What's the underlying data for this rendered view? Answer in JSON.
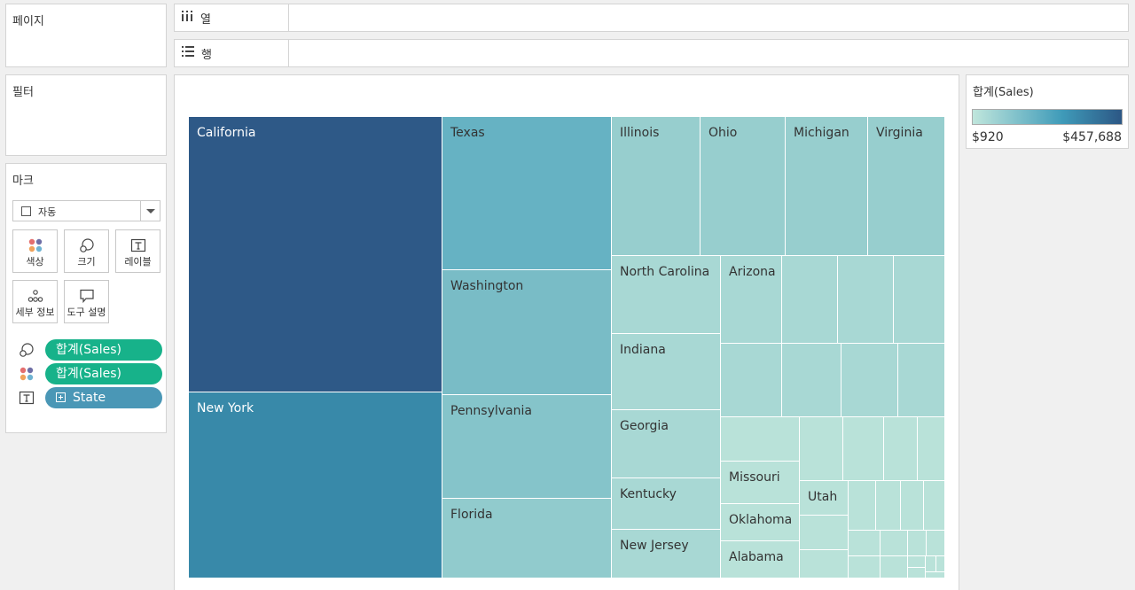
{
  "panels": {
    "pages_title": "페이지",
    "filters_title": "필터",
    "marks_title": "마크"
  },
  "shelves": {
    "columns_label": "열",
    "rows_label": "행"
  },
  "marks": {
    "mark_type": "자동",
    "buttons": {
      "color": "색상",
      "size": "크기",
      "label": "레이블",
      "detail": "세부 정보",
      "tooltip": "도구 설명"
    },
    "pills": [
      {
        "icon": "size-icon",
        "text": "합계(Sales)",
        "color": "#17b28a"
      },
      {
        "icon": "color-icon",
        "text": "합계(Sales)",
        "color": "#17b28a"
      },
      {
        "icon": "label-icon",
        "text": "State",
        "color": "#4a97b6"
      }
    ]
  },
  "legend": {
    "title": "합계(Sales)",
    "min_label": "$920",
    "max_label": "$457,688",
    "min_color": "#c0e6dc",
    "max_color": "#2c5785"
  },
  "treemap": {
    "labels": {
      "california": "California",
      "new_york": "New York",
      "texas": "Texas",
      "washington": "Washington",
      "pennsylvania": "Pennsylvania",
      "florida": "Florida",
      "illinois": "Illinois",
      "ohio": "Ohio",
      "michigan": "Michigan",
      "virginia": "Virginia",
      "north_carolina": "North Carolina",
      "arizona": "Arizona",
      "indiana": "Indiana",
      "georgia": "Georgia",
      "kentucky": "Kentucky",
      "new_jersey": "New Jersey",
      "missouri": "Missouri",
      "oklahoma": "Oklahoma",
      "alabama": "Alabama",
      "utah": "Utah"
    },
    "colors": {
      "california": "#2e5987",
      "new_york": "#3889a9",
      "texas": "#66b2c3",
      "washington": "#79bcc6",
      "pennsylvania": "#85c4ca",
      "florida": "#91cbcd",
      "mid_states": "#97cece",
      "lighter_states": "#a8d8d4",
      "small_states": "#b9e2d9"
    }
  }
}
